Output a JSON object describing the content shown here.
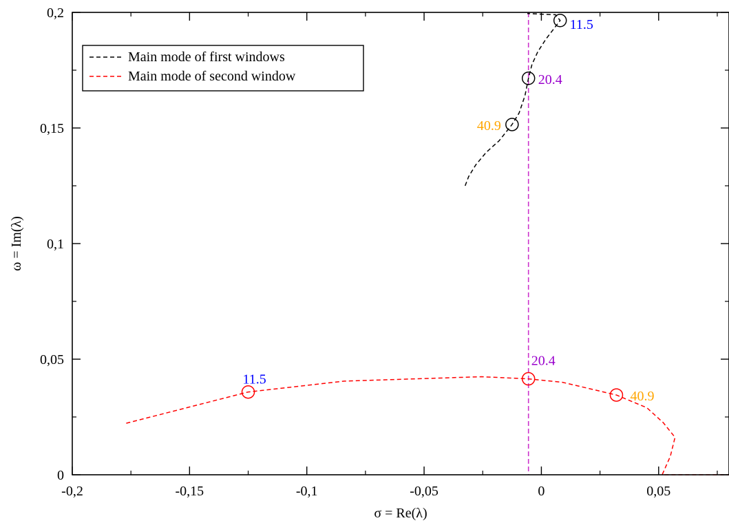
{
  "chart_data": {
    "type": "line",
    "title": "",
    "xlabel": "σ = Re(λ)",
    "ylabel": "ω = Im(λ)",
    "xlim": [
      -0.2,
      0.08
    ],
    "ylim": [
      0,
      0.2
    ],
    "x_ticks": [
      -0.2,
      -0.15,
      -0.1,
      -0.05,
      0,
      0.05
    ],
    "x_tick_labels": [
      "-0,2",
      "-0,15",
      "-0,1",
      "-0,05",
      "0",
      "0,05"
    ],
    "y_ticks": [
      0,
      0.05,
      0.1,
      0.15,
      0.2
    ],
    "y_tick_labels": [
      "0",
      "0,05",
      "0,1",
      "0,15",
      "0,2"
    ],
    "grid": false,
    "legend_position": "top-left",
    "series": [
      {
        "name": "Main mode of first windows",
        "color": "#000000",
        "dash": "dashed",
        "points": [
          [
            -0.0325,
            0.125
          ],
          [
            -0.031,
            0.129
          ],
          [
            -0.028,
            0.134
          ],
          [
            -0.0235,
            0.1395
          ],
          [
            -0.018,
            0.1445
          ],
          [
            -0.0125,
            0.1515
          ],
          [
            -0.0095,
            0.1565
          ],
          [
            -0.007,
            0.164
          ],
          [
            -0.0055,
            0.1715
          ],
          [
            -0.004,
            0.1775
          ],
          [
            -0.0015,
            0.183
          ],
          [
            0.002,
            0.1885
          ],
          [
            0.008,
            0.1965
          ],
          [
            0.006,
            0.199
          ],
          [
            -0.006,
            0.1995
          ]
        ]
      },
      {
        "name": "Main mode of second window",
        "color": "#ff0000",
        "dash": "dashed",
        "points": [
          [
            -0.177,
            0.0223
          ],
          [
            -0.125,
            0.0358
          ],
          [
            -0.084,
            0.0405
          ],
          [
            -0.0255,
            0.0424
          ],
          [
            -0.0055,
            0.0415
          ],
          [
            0.009,
            0.04
          ],
          [
            0.032,
            0.0345
          ],
          [
            0.045,
            0.029
          ],
          [
            0.052,
            0.0225
          ],
          [
            0.057,
            0.0162
          ],
          [
            0.055,
            0.008
          ],
          [
            0.0515,
            0.0
          ],
          [
            0.08,
            0.0
          ]
        ]
      }
    ],
    "reference_line": {
      "x": -0.0055,
      "color": "#cc33cc",
      "dash": "dashed"
    },
    "markers": [
      {
        "series": 0,
        "x": 0.008,
        "y": 0.1965,
        "label": "11.5",
        "label_color": "#0000ff"
      },
      {
        "series": 0,
        "x": -0.0055,
        "y": 0.1715,
        "label": "20.4",
        "label_color": "#9900cc"
      },
      {
        "series": 0,
        "x": -0.0125,
        "y": 0.1515,
        "label": "40.9",
        "label_color": "#ffa500"
      },
      {
        "series": 1,
        "x": -0.125,
        "y": 0.0358,
        "label": "11.5",
        "label_color": "#0000ff"
      },
      {
        "series": 1,
        "x": -0.0055,
        "y": 0.0415,
        "label": "20.4",
        "label_color": "#9900cc"
      },
      {
        "series": 1,
        "x": 0.032,
        "y": 0.0345,
        "label": "40.9",
        "label_color": "#ffa500"
      }
    ]
  }
}
